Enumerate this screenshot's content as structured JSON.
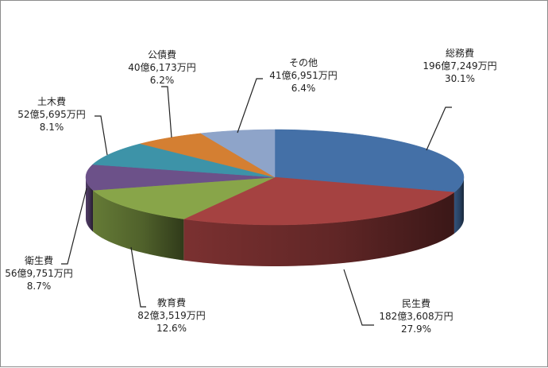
{
  "chart_data": {
    "type": "pie",
    "title": "",
    "slices": [
      {
        "name": "総務費",
        "amount": "196億7,249万円",
        "percent": 30.1,
        "percent_label": "30.1%",
        "color": "#4470a7"
      },
      {
        "name": "民生費",
        "amount": "182億3,608万円",
        "percent": 27.9,
        "percent_label": "27.9%",
        "color": "#a54241"
      },
      {
        "name": "教育費",
        "amount": "82億3,519万円",
        "percent": 12.6,
        "percent_label": "12.6%",
        "color": "#88a549"
      },
      {
        "name": "衛生費",
        "amount": "56億9,751万円",
        "percent": 8.7,
        "percent_label": "8.7%",
        "color": "#6c5189"
      },
      {
        "name": "土木費",
        "amount": "52億5,695万円",
        "percent": 8.1,
        "percent_label": "8.1%",
        "color": "#3d93a8"
      },
      {
        "name": "公債費",
        "amount": "40億6,173万円",
        "percent": 6.2,
        "percent_label": "6.2%",
        "color": "#d47f32"
      },
      {
        "name": "その他",
        "amount": "41億6,951万円",
        "percent": 6.4,
        "percent_label": "6.4%",
        "color": "#8ea4c9"
      }
    ],
    "start": "top",
    "direction": "clockwise",
    "style": "3d-pie",
    "legend": "none"
  }
}
